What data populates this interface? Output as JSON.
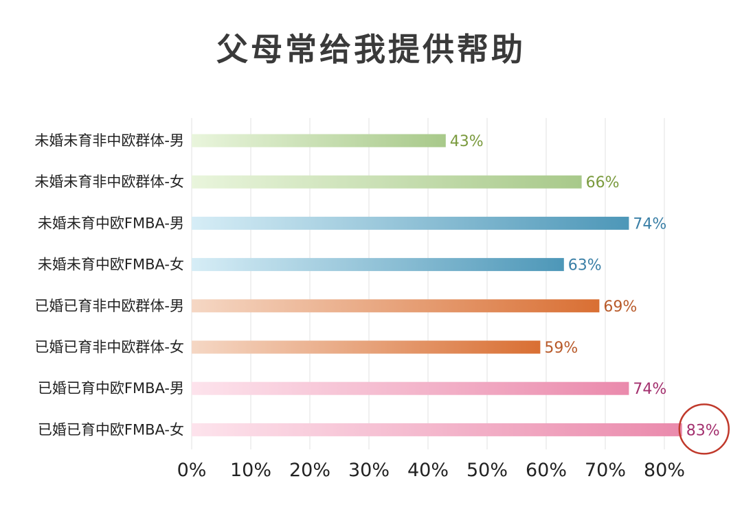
{
  "chart_data": {
    "type": "bar",
    "orientation": "horizontal",
    "title": "父母常给我提供帮助",
    "categories": [
      "未婚未育非中欧群体-男",
      "未婚未育非中欧群体-女",
      "未婚未育中欧FMBA-男",
      "未婚未育中欧FMBA-女",
      "已婚已育非中欧群体-男",
      "已婚已育非中欧群体-女",
      "已婚已育中欧FMBA-男",
      "已婚已育中欧FMBA-女"
    ],
    "values": [
      43,
      66,
      74,
      63,
      69,
      59,
      74,
      83
    ],
    "value_labels": [
      "43%",
      "66%",
      "74%",
      "63%",
      "69%",
      "59%",
      "74%",
      "83%"
    ],
    "xlim": [
      0,
      80
    ],
    "xticks": [
      0,
      10,
      20,
      30,
      40,
      50,
      60,
      70,
      80
    ],
    "xtick_labels": [
      "0%",
      "10%",
      "20%",
      "30%",
      "40%",
      "50%",
      "60%",
      "70%",
      "80%"
    ],
    "grid": true,
    "highlight_index": 7,
    "highlight_color": "#c0392b",
    "bar_colors": [
      {
        "from": "#e9f5dc",
        "to": "#a8c98a",
        "label": "#7a9a3d"
      },
      {
        "from": "#e9f5dc",
        "to": "#a8c98a",
        "label": "#7a9a3d"
      },
      {
        "from": "#d6edf6",
        "to": "#4d97b8",
        "label": "#3a7fa6"
      },
      {
        "from": "#d6edf6",
        "to": "#4d97b8",
        "label": "#3a7fa6"
      },
      {
        "from": "#f5d7c4",
        "to": "#d96f33",
        "label": "#b85a2a"
      },
      {
        "from": "#f5d7c4",
        "to": "#d96f33",
        "label": "#b85a2a"
      },
      {
        "from": "#fde3ec",
        "to": "#ea8aac",
        "label": "#a3306e"
      },
      {
        "from": "#fde3ec",
        "to": "#ea8aac",
        "label": "#a3306e"
      }
    ]
  }
}
